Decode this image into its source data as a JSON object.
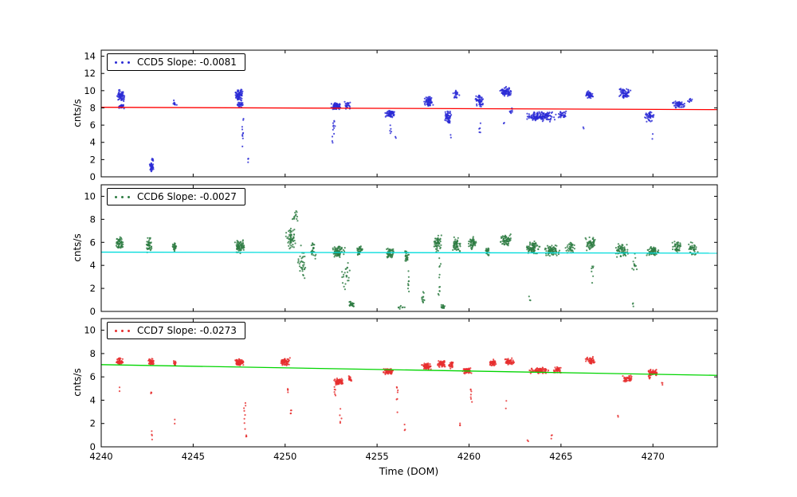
{
  "figure": {
    "xlabel": "Time (DOM)",
    "background": "#ffffff"
  },
  "chart_data": [
    {
      "type": "scatter",
      "legend": "CCD5 Slope: -0.0081",
      "slope": -0.0081,
      "ylabel": "cnts/s",
      "xlim": [
        4240,
        4273.5
      ],
      "ylim": [
        0,
        14.7
      ],
      "yticks": [
        0,
        2,
        4,
        6,
        8,
        10,
        12,
        14
      ],
      "xticks": [
        4240,
        4245,
        4250,
        4255,
        4260,
        4265,
        4270
      ],
      "show_xtick_labels": false,
      "marker_color": "#2b2bd5",
      "trend_line": {
        "color": "#ff0000",
        "x": [
          4240,
          4273.5
        ],
        "y": [
          8.07,
          7.8
        ]
      },
      "clusters_format": [
        "x_center",
        "x_spread",
        "y_center",
        "y_spread",
        "n_points"
      ],
      "clusters": [
        [
          4241.05,
          0.22,
          9.4,
          0.8,
          70
        ],
        [
          4241.1,
          0.18,
          8.2,
          0.35,
          25
        ],
        [
          4242.75,
          0.13,
          1.1,
          0.55,
          40
        ],
        [
          4242.8,
          0.06,
          2.1,
          0.25,
          6
        ],
        [
          4244.0,
          0.12,
          8.6,
          0.35,
          12
        ],
        [
          4247.5,
          0.22,
          9.5,
          0.75,
          80
        ],
        [
          4247.55,
          0.18,
          8.4,
          0.4,
          25
        ],
        [
          4247.7,
          0.06,
          5.0,
          2.6,
          10
        ],
        [
          4252.75,
          0.28,
          8.2,
          0.45,
          80
        ],
        [
          4252.65,
          0.08,
          6.2,
          1.4,
          9
        ],
        [
          4253.4,
          0.18,
          8.3,
          0.5,
          25
        ],
        [
          4255.7,
          0.28,
          7.3,
          0.45,
          60
        ],
        [
          4255.75,
          0.07,
          5.2,
          1.2,
          5
        ],
        [
          4257.8,
          0.28,
          8.7,
          0.7,
          65
        ],
        [
          4258.85,
          0.22,
          7.0,
          0.7,
          45
        ],
        [
          4258.9,
          0.12,
          6.4,
          0.15,
          12
        ],
        [
          4259.3,
          0.18,
          9.6,
          0.6,
          22
        ],
        [
          4260.55,
          0.25,
          8.8,
          0.75,
          55
        ],
        [
          4260.6,
          0.07,
          5.8,
          1.3,
          5
        ],
        [
          4262.0,
          0.38,
          9.9,
          0.7,
          75
        ],
        [
          4262.3,
          0.1,
          7.6,
          0.4,
          8
        ],
        [
          4263.9,
          0.85,
          7.0,
          0.65,
          150
        ],
        [
          4265.1,
          0.3,
          7.2,
          0.5,
          30
        ],
        [
          4266.55,
          0.22,
          9.5,
          0.5,
          45
        ],
        [
          4268.45,
          0.35,
          9.7,
          0.65,
          65
        ],
        [
          4269.8,
          0.28,
          7.0,
          0.65,
          45
        ],
        [
          4271.4,
          0.35,
          8.4,
          0.5,
          55
        ],
        [
          4272.0,
          0.15,
          8.8,
          0.4,
          10
        ],
        [
          4248.0,
          0.05,
          2.2,
          0.8,
          3
        ],
        [
          4252.6,
          0.05,
          4.3,
          0.5,
          3
        ],
        [
          4256.0,
          0.05,
          4.6,
          0.4,
          2
        ],
        [
          4259.0,
          0.05,
          4.8,
          0.4,
          2
        ],
        [
          4266.2,
          0.05,
          5.6,
          0.4,
          2
        ],
        [
          4270.0,
          0.05,
          4.6,
          0.5,
          2
        ],
        [
          4261.9,
          0.05,
          6.3,
          0.3,
          2
        ]
      ]
    },
    {
      "type": "scatter",
      "legend": "CCD6 Slope: -0.0027",
      "slope": -0.0027,
      "ylabel": "cnts/s",
      "xlim": [
        4240,
        4273.5
      ],
      "ylim": [
        0,
        11
      ],
      "yticks": [
        0,
        2,
        4,
        6,
        8,
        10
      ],
      "xticks": [
        4240,
        4245,
        4250,
        4255,
        4260,
        4265,
        4270
      ],
      "show_xtick_labels": false,
      "marker_color": "#2e7d43",
      "trend_line": {
        "color": "#00dcdc",
        "x": [
          4240,
          4273.5
        ],
        "y": [
          5.15,
          5.06
        ]
      },
      "clusters_format": [
        "x_center",
        "x_spread",
        "y_center",
        "y_spread",
        "n_points"
      ],
      "clusters": [
        [
          4241.0,
          0.22,
          5.9,
          0.65,
          55
        ],
        [
          4242.6,
          0.18,
          5.8,
          0.75,
          45
        ],
        [
          4244.0,
          0.13,
          5.6,
          0.55,
          28
        ],
        [
          4247.5,
          0.28,
          5.6,
          0.6,
          75
        ],
        [
          4250.3,
          0.28,
          6.3,
          1.1,
          60
        ],
        [
          4250.55,
          0.18,
          8.2,
          0.7,
          14
        ],
        [
          4250.9,
          0.25,
          4.3,
          1.7,
          35
        ],
        [
          4251.5,
          0.18,
          5.4,
          0.9,
          25
        ],
        [
          4252.9,
          0.35,
          5.2,
          0.55,
          85
        ],
        [
          4253.3,
          0.25,
          3.1,
          1.4,
          22
        ],
        [
          4253.6,
          0.18,
          0.6,
          0.3,
          28
        ],
        [
          4254.05,
          0.18,
          5.3,
          0.5,
          35
        ],
        [
          4255.7,
          0.22,
          5.0,
          0.55,
          55
        ],
        [
          4256.6,
          0.13,
          4.8,
          0.55,
          28
        ],
        [
          4256.7,
          0.05,
          2.2,
          1.6,
          9
        ],
        [
          4256.3,
          0.3,
          0.35,
          0.2,
          8
        ],
        [
          4257.5,
          0.08,
          1.1,
          0.7,
          12
        ],
        [
          4258.3,
          0.22,
          5.9,
          0.75,
          60
        ],
        [
          4258.4,
          0.08,
          3.0,
          1.8,
          12
        ],
        [
          4258.6,
          0.13,
          0.4,
          0.25,
          18
        ],
        [
          4259.3,
          0.25,
          5.8,
          0.75,
          55
        ],
        [
          4260.2,
          0.25,
          5.9,
          0.65,
          55
        ],
        [
          4261.0,
          0.13,
          5.2,
          0.55,
          22
        ],
        [
          4262.0,
          0.35,
          6.2,
          0.6,
          65
        ],
        [
          4263.5,
          0.45,
          5.5,
          0.65,
          85
        ],
        [
          4264.5,
          0.45,
          5.3,
          0.55,
          85
        ],
        [
          4265.5,
          0.28,
          5.5,
          0.55,
          38
        ],
        [
          4266.6,
          0.28,
          5.9,
          0.65,
          55
        ],
        [
          4266.7,
          0.07,
          3.6,
          1.4,
          7
        ],
        [
          4268.3,
          0.35,
          5.3,
          0.65,
          65
        ],
        [
          4269.0,
          0.15,
          4.0,
          1.4,
          12
        ],
        [
          4270.0,
          0.35,
          5.2,
          0.55,
          65
        ],
        [
          4271.3,
          0.28,
          5.6,
          0.55,
          45
        ],
        [
          4272.2,
          0.28,
          5.5,
          0.75,
          38
        ],
        [
          4263.3,
          0.05,
          1.0,
          0.4,
          3
        ],
        [
          4268.9,
          0.05,
          0.6,
          0.3,
          3
        ]
      ]
    },
    {
      "type": "scatter",
      "legend": "CCD7 Slope: -0.0273",
      "slope": -0.0273,
      "ylabel": "cnts/s",
      "xlabel": "Time (DOM)",
      "xlim": [
        4240,
        4273.5
      ],
      "ylim": [
        0,
        11
      ],
      "yticks": [
        0,
        2,
        4,
        6,
        8,
        10
      ],
      "xticks": [
        4240,
        4245,
        4250,
        4255,
        4260,
        4265,
        4270
      ],
      "show_xtick_labels": true,
      "marker_color": "#e62e2e",
      "trend_line": {
        "color": "#00d500",
        "x": [
          4240,
          4273.5
        ],
        "y": [
          7.05,
          6.13
        ]
      },
      "clusters_format": [
        "x_center",
        "x_spread",
        "y_center",
        "y_spread",
        "n_points"
      ],
      "clusters": [
        [
          4241.0,
          0.22,
          7.3,
          0.35,
          45
        ],
        [
          4241.0,
          0.04,
          5.0,
          0.3,
          2
        ],
        [
          4242.7,
          0.18,
          7.3,
          0.35,
          38
        ],
        [
          4242.72,
          0.04,
          4.7,
          0.3,
          3
        ],
        [
          4242.75,
          0.04,
          1.0,
          0.5,
          4
        ],
        [
          4244.0,
          0.1,
          7.2,
          0.3,
          14
        ],
        [
          4244.0,
          0.03,
          2.0,
          0.4,
          2
        ],
        [
          4247.5,
          0.28,
          7.2,
          0.35,
          75
        ],
        [
          4247.8,
          0.07,
          3.0,
          1.9,
          8
        ],
        [
          4247.9,
          0.04,
          0.8,
          0.4,
          3
        ],
        [
          4250.0,
          0.28,
          7.3,
          0.35,
          65
        ],
        [
          4250.15,
          0.05,
          5.0,
          0.5,
          4
        ],
        [
          4250.3,
          0.05,
          2.9,
          0.5,
          4
        ],
        [
          4252.9,
          0.28,
          5.6,
          0.3,
          75
        ],
        [
          4252.7,
          0.08,
          4.6,
          0.7,
          6
        ],
        [
          4253.0,
          0.08,
          2.6,
          0.9,
          5
        ],
        [
          4253.5,
          0.13,
          5.8,
          0.28,
          18
        ],
        [
          4255.6,
          0.3,
          6.45,
          0.3,
          75
        ],
        [
          4256.1,
          0.07,
          4.0,
          1.8,
          7
        ],
        [
          4256.5,
          0.04,
          1.5,
          0.7,
          3
        ],
        [
          4257.7,
          0.28,
          6.9,
          0.32,
          65
        ],
        [
          4258.5,
          0.25,
          7.1,
          0.3,
          55
        ],
        [
          4259.05,
          0.18,
          7.0,
          0.3,
          28
        ],
        [
          4259.5,
          0.04,
          2.1,
          0.7,
          3
        ],
        [
          4259.9,
          0.25,
          6.55,
          0.3,
          55
        ],
        [
          4260.1,
          0.07,
          4.6,
          1.4,
          7
        ],
        [
          4261.3,
          0.22,
          7.2,
          0.33,
          45
        ],
        [
          4262.2,
          0.28,
          7.3,
          0.33,
          55
        ],
        [
          4262.0,
          0.04,
          3.6,
          0.5,
          2
        ],
        [
          4263.8,
          0.55,
          6.55,
          0.28,
          95
        ],
        [
          4264.8,
          0.28,
          6.6,
          0.28,
          38
        ],
        [
          4264.5,
          0.04,
          1.0,
          0.5,
          3
        ],
        [
          4263.2,
          0.04,
          0.5,
          0.3,
          2
        ],
        [
          4266.6,
          0.28,
          7.4,
          0.33,
          55
        ],
        [
          4268.6,
          0.28,
          5.85,
          0.3,
          45
        ],
        [
          4268.1,
          0.04,
          2.6,
          0.5,
          2
        ],
        [
          4270.0,
          0.28,
          6.4,
          0.3,
          55
        ],
        [
          4269.8,
          0.08,
          6.0,
          0.3,
          9
        ],
        [
          4270.5,
          0.04,
          5.5,
          0.3,
          3
        ]
      ]
    }
  ]
}
